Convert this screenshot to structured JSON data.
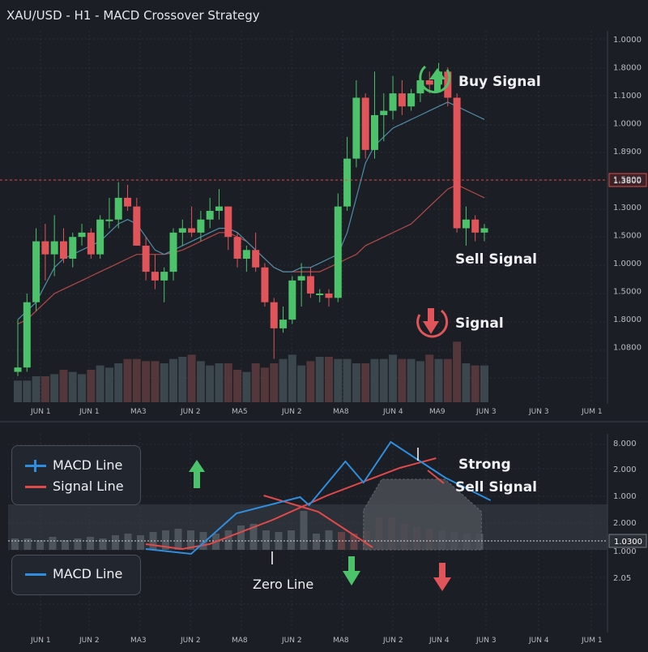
{
  "title": "XAU/USD - H1 - MACD Crossover Strategy",
  "colors": {
    "background": "#1b1e24",
    "grid": "#2b2f37",
    "bull": "#4cc36a",
    "bear": "#e0545a",
    "bull_volume": "#3f4b52",
    "bear_volume": "#5a3a3e",
    "ma_fast": "#4f8da8",
    "ma_slow": "#b54a4a",
    "macd_line": "#2e8fe0",
    "signal_line": "#e24a4a",
    "price_tag": "#e24a4a",
    "axis_text": "#b7bcc4"
  },
  "annotations": {
    "buy_signal": "Buy Signal",
    "sell_signal": "Sell Signal",
    "signal": "Signal",
    "strong": "Strong",
    "strong_sell_signal": "Sell Signal",
    "zero_line": "Zero Line"
  },
  "icons": {
    "buy": "arrow-up-circle-icon",
    "sell": "arrow-down-circle-icon",
    "macd_up": "arrow-up-icon",
    "macd_down_green": "arrow-down-icon",
    "macd_down_red": "arrow-down-icon"
  },
  "legend_top": {
    "macd": "MACD Line",
    "signal": "Signal Line"
  },
  "legend_bottom": {
    "macd": "MACD Line"
  },
  "chart_data": [
    {
      "type": "candlestick",
      "title": "XAU/USD - H1 - MACD Crossover Strategy",
      "price_axis_labels": [
        "1.0000",
        "1.8000",
        "1.1000",
        "1.0000",
        "1.8900",
        "1.5000",
        "1.3000",
        "1.5000",
        "1.0000",
        "1.5000",
        "1.8000",
        "1.0800"
      ],
      "current_price_label": "1.3800",
      "date_labels": [
        "JUN 1",
        "JUN 1",
        "MA3",
        "JUN 2",
        "MA5",
        "JUN 2",
        "MA8",
        "JUN 4",
        "MA9",
        "JUN 3",
        "JUN 3",
        "JUM 1"
      ],
      "candles": [
        {
          "o": 1.74,
          "h": 1.8,
          "l": 1.735,
          "c": 1.745
        },
        {
          "o": 1.745,
          "h": 1.83,
          "l": 1.74,
          "c": 1.82
        },
        {
          "o": 1.82,
          "h": 1.905,
          "l": 1.81,
          "c": 1.89
        },
        {
          "o": 1.89,
          "h": 1.91,
          "l": 1.845,
          "c": 1.875
        },
        {
          "o": 1.875,
          "h": 1.92,
          "l": 1.85,
          "c": 1.89
        },
        {
          "o": 1.89,
          "h": 1.905,
          "l": 1.865,
          "c": 1.87
        },
        {
          "o": 1.87,
          "h": 1.9,
          "l": 1.86,
          "c": 1.895
        },
        {
          "o": 1.895,
          "h": 1.91,
          "l": 1.885,
          "c": 1.9
        },
        {
          "o": 1.9,
          "h": 1.905,
          "l": 1.87,
          "c": 1.875
        },
        {
          "o": 1.875,
          "h": 1.92,
          "l": 1.87,
          "c": 1.915
        },
        {
          "o": 1.915,
          "h": 1.94,
          "l": 1.905,
          "c": 1.915
        },
        {
          "o": 1.915,
          "h": 1.958,
          "l": 1.905,
          "c": 1.94
        },
        {
          "o": 1.94,
          "h": 1.955,
          "l": 1.925,
          "c": 1.93
        },
        {
          "o": 1.93,
          "h": 1.94,
          "l": 1.885,
          "c": 1.885
        },
        {
          "o": 1.885,
          "h": 1.895,
          "l": 1.845,
          "c": 1.855
        },
        {
          "o": 1.855,
          "h": 1.875,
          "l": 1.835,
          "c": 1.845
        },
        {
          "o": 1.845,
          "h": 1.86,
          "l": 1.82,
          "c": 1.855
        },
        {
          "o": 1.855,
          "h": 1.905,
          "l": 1.845,
          "c": 1.9
        },
        {
          "o": 1.9,
          "h": 1.915,
          "l": 1.885,
          "c": 1.905
        },
        {
          "o": 1.905,
          "h": 1.93,
          "l": 1.895,
          "c": 1.9
        },
        {
          "o": 1.9,
          "h": 1.925,
          "l": 1.89,
          "c": 1.915
        },
        {
          "o": 1.915,
          "h": 1.94,
          "l": 1.905,
          "c": 1.925
        },
        {
          "o": 1.925,
          "h": 1.95,
          "l": 1.915,
          "c": 1.93
        },
        {
          "o": 1.93,
          "h": 1.93,
          "l": 1.88,
          "c": 1.895
        },
        {
          "o": 1.895,
          "h": 1.9,
          "l": 1.86,
          "c": 1.87
        },
        {
          "o": 1.87,
          "h": 1.885,
          "l": 1.855,
          "c": 1.88
        },
        {
          "o": 1.88,
          "h": 1.9,
          "l": 1.855,
          "c": 1.86
        },
        {
          "o": 1.86,
          "h": 1.865,
          "l": 1.815,
          "c": 1.82
        },
        {
          "o": 1.82,
          "h": 1.825,
          "l": 1.755,
          "c": 1.79
        },
        {
          "o": 1.79,
          "h": 1.815,
          "l": 1.785,
          "c": 1.8
        },
        {
          "o": 1.8,
          "h": 1.85,
          "l": 1.795,
          "c": 1.845
        },
        {
          "o": 1.845,
          "h": 1.865,
          "l": 1.815,
          "c": 1.85
        },
        {
          "o": 1.85,
          "h": 1.86,
          "l": 1.825,
          "c": 1.83
        },
        {
          "o": 1.83,
          "h": 1.835,
          "l": 1.82,
          "c": 1.83
        },
        {
          "o": 1.83,
          "h": 1.835,
          "l": 1.815,
          "c": 1.825
        },
        {
          "o": 1.825,
          "h": 1.945,
          "l": 1.82,
          "c": 1.93
        },
        {
          "o": 1.93,
          "h": 2.01,
          "l": 1.925,
          "c": 1.985
        },
        {
          "o": 1.985,
          "h": 2.075,
          "l": 1.975,
          "c": 2.055
        },
        {
          "o": 2.055,
          "h": 2.06,
          "l": 1.985,
          "c": 1.995
        },
        {
          "o": 1.995,
          "h": 2.085,
          "l": 1.985,
          "c": 2.035
        },
        {
          "o": 2.035,
          "h": 2.06,
          "l": 2.005,
          "c": 2.04
        },
        {
          "o": 2.04,
          "h": 2.08,
          "l": 2.03,
          "c": 2.06
        },
        {
          "o": 2.06,
          "h": 2.075,
          "l": 2.035,
          "c": 2.045
        },
        {
          "o": 2.045,
          "h": 2.065,
          "l": 2.04,
          "c": 2.06
        },
        {
          "o": 2.06,
          "h": 2.08,
          "l": 2.05,
          "c": 2.075
        },
        {
          "o": 2.075,
          "h": 2.085,
          "l": 2.06,
          "c": 2.07
        },
        {
          "o": 2.07,
          "h": 2.095,
          "l": 2.065,
          "c": 2.085
        },
        {
          "o": 2.085,
          "h": 2.09,
          "l": 2.045,
          "c": 2.055
        },
        {
          "o": 2.055,
          "h": 2.06,
          "l": 1.9,
          "c": 1.905
        },
        {
          "o": 1.905,
          "h": 1.93,
          "l": 1.885,
          "c": 1.915
        },
        {
          "o": 1.915,
          "h": 1.92,
          "l": 1.89,
          "c": 1.9
        },
        {
          "o": 1.9,
          "h": 1.91,
          "l": 1.89,
          "c": 1.905
        }
      ],
      "ma_fast": [
        1.8,
        1.81,
        1.82,
        1.84,
        1.86,
        1.87,
        1.875,
        1.88,
        1.885,
        1.89,
        1.9,
        1.91,
        1.915,
        1.91,
        1.895,
        1.88,
        1.875,
        1.88,
        1.885,
        1.89,
        1.895,
        1.9,
        1.905,
        1.905,
        1.9,
        1.89,
        1.88,
        1.87,
        1.86,
        1.855,
        1.855,
        1.86,
        1.86,
        1.865,
        1.87,
        1.875,
        1.9,
        1.94,
        1.98,
        2.0,
        2.01,
        2.02,
        2.025,
        2.03,
        2.035,
        2.04,
        2.045,
        2.05,
        2.045,
        2.04,
        2.035,
        2.03
      ],
      "ma_slow": [
        1.795,
        1.8,
        1.81,
        1.82,
        1.83,
        1.835,
        1.84,
        1.845,
        1.85,
        1.855,
        1.86,
        1.865,
        1.87,
        1.875,
        1.875,
        1.875,
        1.875,
        1.877,
        1.88,
        1.885,
        1.89,
        1.895,
        1.9,
        1.9,
        1.895,
        1.89,
        1.88,
        1.87,
        1.86,
        1.855,
        1.855,
        1.855,
        1.855,
        1.855,
        1.86,
        1.865,
        1.87,
        1.875,
        1.885,
        1.89,
        1.895,
        1.9,
        1.905,
        1.91,
        1.92,
        1.93,
        1.94,
        1.95,
        1.955,
        1.95,
        1.945,
        1.94
      ],
      "volume": [
        10,
        10,
        12,
        12,
        13,
        15,
        14,
        13,
        15,
        17,
        16,
        18,
        20,
        20,
        19,
        19,
        18,
        20,
        21,
        22,
        19,
        17,
        18,
        18,
        15,
        14,
        18,
        16,
        18,
        20,
        22,
        17,
        19,
        21,
        21,
        20,
        20,
        18,
        18,
        20,
        20,
        22,
        20,
        20,
        19,
        22,
        20,
        20,
        28,
        18,
        17,
        17
      ]
    },
    {
      "type": "macd",
      "axis_labels": [
        "8.000",
        "2.000",
        "1.000",
        "2.000",
        "1.000",
        "2.05"
      ],
      "zero_label": "1.0300",
      "date_labels": [
        "JUN 1",
        "JUN 2",
        "MA3",
        "JUN 2",
        "MA8",
        "JUN 2",
        "MA8",
        "JUN 2",
        "JUN 4",
        "JUN 3",
        "JUN 4",
        "JUM 1"
      ],
      "macd_line": [
        [
          0,
          -0.3
        ],
        [
          5,
          -0.45
        ],
        [
          10,
          0.8
        ],
        [
          17,
          1.3
        ],
        [
          18,
          1.05
        ],
        [
          22,
          2.4
        ],
        [
          24,
          1.75
        ],
        [
          27,
          3.0
        ],
        [
          33,
          1.9
        ],
        [
          38,
          1.2
        ]
      ],
      "signal_line": [
        [
          0,
          -0.15
        ],
        [
          4,
          -0.3
        ],
        [
          7,
          -0.15
        ],
        [
          14,
          0.6
        ],
        [
          20,
          1.35
        ],
        [
          28,
          2.2
        ],
        [
          32,
          2.5
        ]
      ],
      "signal_line_2": [
        [
          13,
          1.35
        ],
        [
          19,
          0.85
        ],
        [
          25,
          -0.25
        ]
      ],
      "histogram_area": [
        [
          24,
          0.9
        ],
        [
          26,
          1.85
        ],
        [
          33,
          1.85
        ],
        [
          37,
          0.85
        ]
      ],
      "histogram": [
        0.35,
        0.35,
        0.3,
        0.4,
        0.3,
        0.35,
        0.4,
        0.35,
        0.45,
        0.5,
        0.45,
        0.55,
        0.6,
        0.65,
        0.6,
        0.55,
        0.5,
        0.6,
        0.75,
        0.8,
        0.6,
        0.55,
        0.6,
        1.2,
        0.5,
        0.6,
        0.55,
        0.5,
        0.6,
        1.0,
        1.0,
        0.8,
        0.7,
        0.65,
        0.6,
        0.55,
        0.5,
        0.5
      ]
    }
  ]
}
